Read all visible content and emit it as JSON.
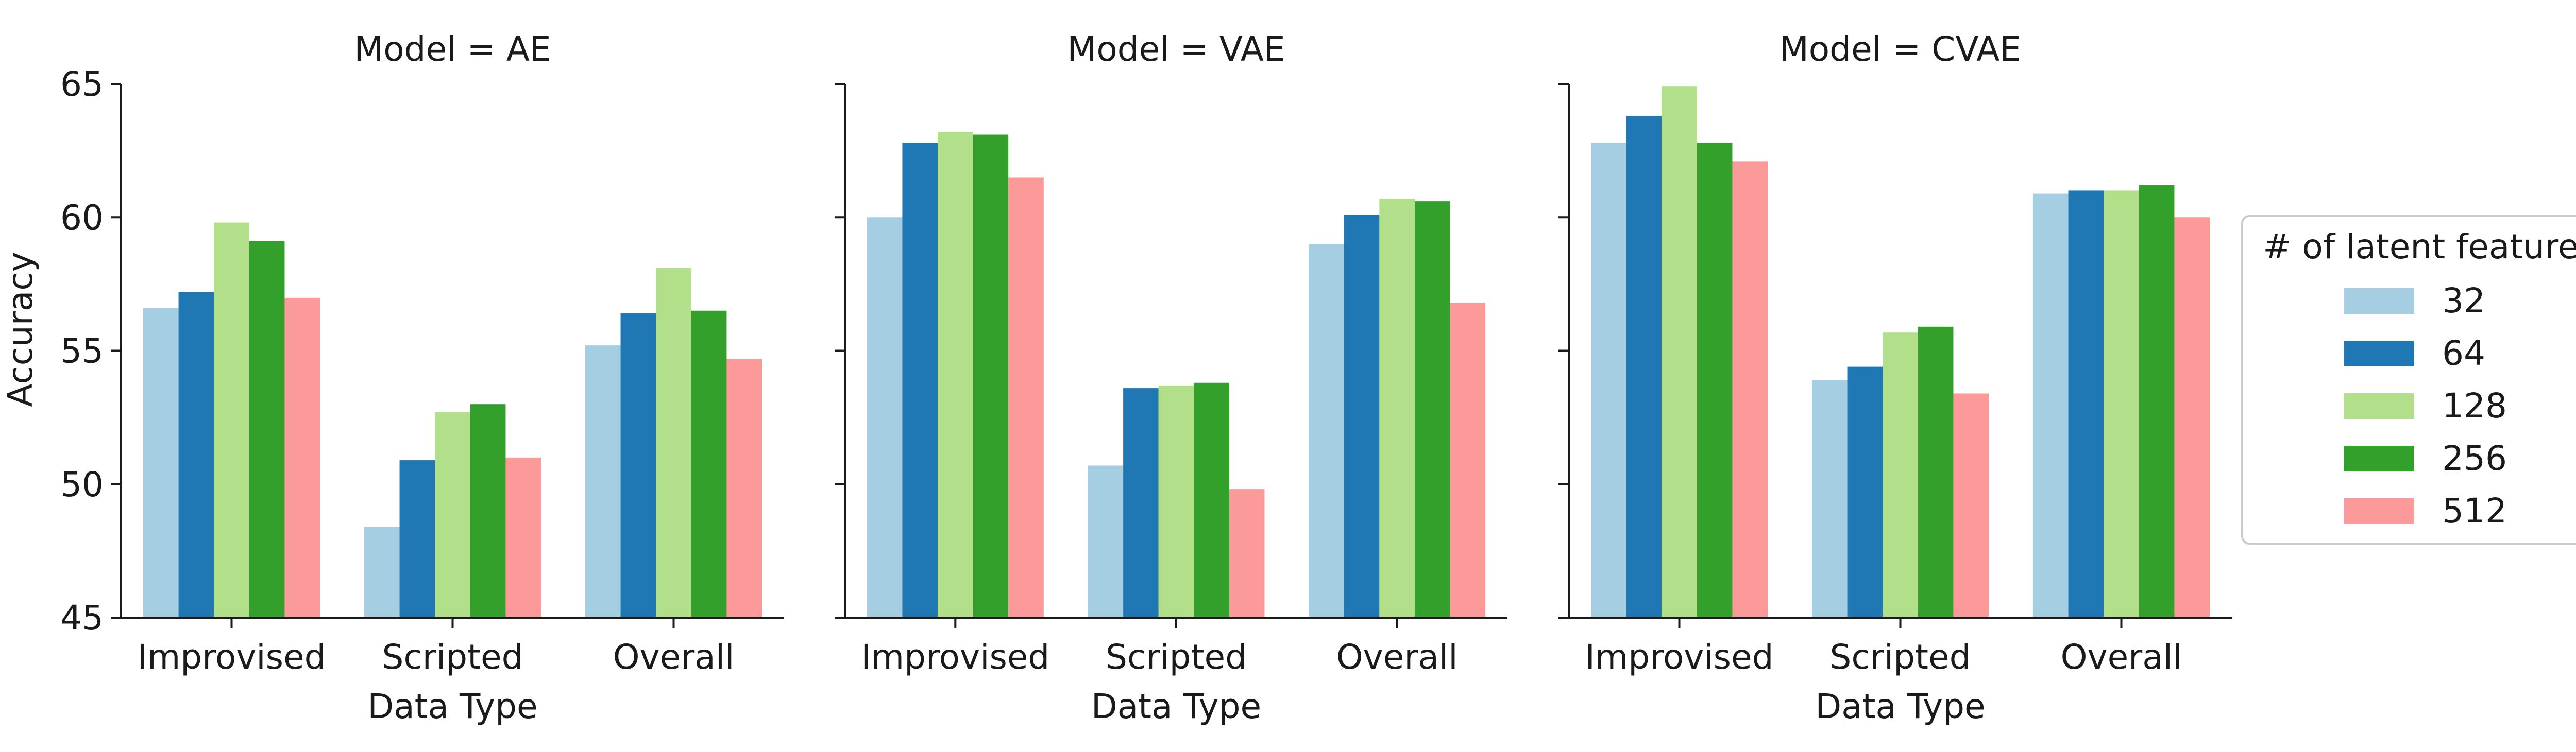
{
  "chart_data": {
    "type": "bar",
    "ylabel": "Accuracy",
    "xlabel": "Data Type",
    "ylim": [
      45,
      65
    ],
    "yticks": [
      45,
      50,
      55,
      60,
      65
    ],
    "categories": [
      "Improvised",
      "Scripted",
      "Overall"
    ],
    "legend": {
      "title": "# of latent features",
      "placement": "right",
      "entries": [
        "32",
        "64",
        "128",
        "256",
        "512"
      ]
    },
    "colors": [
      "#a6cee3",
      "#1f78b4",
      "#b2df8a",
      "#33a02c",
      "#fb9a99"
    ],
    "panels": [
      {
        "title": "Model = AE",
        "series": [
          {
            "name": "32",
            "values": [
              56.6,
              48.4,
              55.2
            ]
          },
          {
            "name": "64",
            "values": [
              57.2,
              50.9,
              56.4
            ]
          },
          {
            "name": "128",
            "values": [
              59.8,
              52.7,
              58.1
            ]
          },
          {
            "name": "256",
            "values": [
              59.1,
              53.0,
              56.5
            ]
          },
          {
            "name": "512",
            "values": [
              57.0,
              51.0,
              54.7
            ]
          }
        ]
      },
      {
        "title": "Model = VAE",
        "series": [
          {
            "name": "32",
            "values": [
              60.0,
              50.7,
              59.0
            ]
          },
          {
            "name": "64",
            "values": [
              62.8,
              53.6,
              60.1
            ]
          },
          {
            "name": "128",
            "values": [
              63.2,
              53.7,
              60.7
            ]
          },
          {
            "name": "256",
            "values": [
              63.1,
              53.8,
              60.6
            ]
          },
          {
            "name": "512",
            "values": [
              61.5,
              49.8,
              56.8
            ]
          }
        ]
      },
      {
        "title": "Model = CVAE",
        "series": [
          {
            "name": "32",
            "values": [
              62.8,
              53.9,
              60.9
            ]
          },
          {
            "name": "64",
            "values": [
              63.8,
              54.4,
              61.0
            ]
          },
          {
            "name": "128",
            "values": [
              64.9,
              55.7,
              61.0
            ]
          },
          {
            "name": "256",
            "values": [
              62.8,
              55.9,
              61.2
            ]
          },
          {
            "name": "512",
            "values": [
              62.1,
              53.4,
              60.0
            ]
          }
        ]
      }
    ]
  }
}
